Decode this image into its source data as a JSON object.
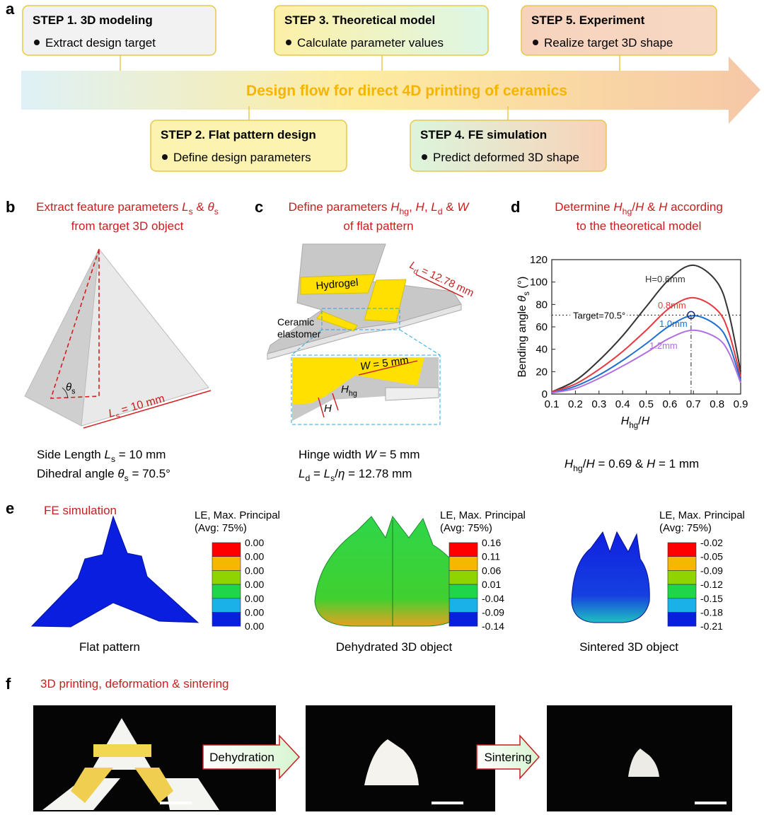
{
  "panel_labels": [
    "a",
    "b",
    "c",
    "d",
    "e",
    "f"
  ],
  "flow": {
    "title": "Design flow for direct 4D printing of ceramics",
    "steps": [
      {
        "heading": "STEP 1. 3D modeling",
        "bullet": "Extract design target"
      },
      {
        "heading": "STEP 2. Flat pattern design",
        "bullet": "Define design parameters"
      },
      {
        "heading": "STEP 3. Theoretical model",
        "bullet": "Calculate parameter values"
      },
      {
        "heading": "STEP 4. FE simulation",
        "bullet": "Predict deformed 3D shape"
      },
      {
        "heading": "STEP 5. Experiment",
        "bullet": "Realize target 3D shape"
      }
    ]
  },
  "panel_b": {
    "title": [
      [
        "Extract feature parameters ",
        "L",
        "s",
        " & ",
        "θ",
        "s"
      ],
      [
        "from target 3D object"
      ]
    ],
    "angle_label": [
      "θ",
      "s"
    ],
    "length_label": [
      "L",
      "s",
      " = 10 mm"
    ],
    "caption": [
      [
        "Side Length ",
        "L",
        "s",
        " = 10 mm"
      ],
      [
        "Dihedral angle ",
        "θ",
        "s",
        " = 70.5°"
      ]
    ]
  },
  "panel_c": {
    "title": [
      [
        "Define parameters ",
        "H",
        "hg",
        ", ",
        "H",
        ", ",
        "L",
        "d",
        " & ",
        "W"
      ],
      [
        "of flat pattern"
      ]
    ],
    "hydrogel_label": "Hydrogel",
    "elastomer_label": [
      "Ceramic",
      "elastomer"
    ],
    "ld_label": [
      "L",
      "d",
      " = 12.78 mm"
    ],
    "w_label": [
      "W",
      " = 5 mm"
    ],
    "hhg_label": [
      "H",
      "hg"
    ],
    "h_label": [
      "H"
    ],
    "caption": [
      [
        "Hinge width ",
        "W",
        " = 5 mm"
      ],
      [
        "L",
        "d",
        " = ",
        "L",
        "s",
        "/",
        "η",
        " = 12.78 mm"
      ]
    ]
  },
  "panel_d": {
    "title": [
      [
        "Determine ",
        "H",
        "hg",
        "/",
        "H",
        " & ",
        "H",
        " according"
      ],
      [
        "to the theoretical model"
      ]
    ],
    "chart_data": {
      "type": "line",
      "xlabel": [
        "H",
        "hg",
        "/",
        "H"
      ],
      "ylabel": [
        "Bending angle ",
        "θ",
        "s",
        " (°)"
      ],
      "x": [
        0.1,
        0.2,
        0.3,
        0.4,
        0.5,
        0.6,
        0.7,
        0.8,
        0.85,
        0.9
      ],
      "series": [
        {
          "name": "H=0.6mm",
          "color": "#333333",
          "values": [
            2,
            12,
            30,
            52,
            78,
            103,
            115,
            100,
            72,
            20
          ]
        },
        {
          "name": "0.8mm",
          "color": "#e8383d",
          "values": [
            2,
            9,
            22,
            38,
            57,
            77,
            86,
            75,
            55,
            15
          ]
        },
        {
          "name": "1.0mm",
          "color": "#1f6fd0",
          "values": [
            1,
            7,
            17,
            30,
            45,
            61,
            70,
            61,
            45,
            12
          ]
        },
        {
          "name": "1.2mm",
          "color": "#b070e0",
          "values": [
            1,
            5,
            14,
            25,
            37,
            50,
            57,
            50,
            37,
            10
          ]
        }
      ],
      "xlim": [
        0.1,
        0.9
      ],
      "ylim": [
        0,
        120
      ],
      "xticks": [
        0.1,
        0.2,
        0.3,
        0.4,
        0.5,
        0.6,
        0.7,
        0.8,
        0.9
      ],
      "yticks": [
        0,
        20,
        40,
        60,
        80,
        100,
        120
      ],
      "target": {
        "label": "Target=70.5°",
        "value": 70.5,
        "x": 0.69
      }
    },
    "result": [
      "H",
      "hg",
      "/",
      "H",
      " = 0.69 & ",
      "H",
      " = 1 mm"
    ]
  },
  "panel_e": {
    "title": "FE simulation",
    "items": [
      {
        "legend_title": "LE, Max. Principal",
        "legend_subtitle": "(Avg: 75%)",
        "legend_labels": [
          "0.00",
          "0.00",
          "0.00",
          "0.00",
          "0.00",
          "0.00",
          "0.00"
        ],
        "caption": "Flat pattern"
      },
      {
        "legend_title": "LE, Max. Principal",
        "legend_subtitle": "(Avg: 75%)",
        "legend_labels": [
          "0.16",
          "0.11",
          "0.06",
          "0.01",
          "-0.04",
          "-0.09",
          "-0.14"
        ],
        "caption": "Dehydrated 3D object"
      },
      {
        "legend_title": "LE, Max. Principal",
        "legend_subtitle": "(Avg: 75%)",
        "legend_labels": [
          "-0.02",
          "-0.05",
          "-0.09",
          "-0.12",
          "-0.15",
          "-0.18",
          "-0.21"
        ],
        "caption": "Sintered 3D object"
      }
    ]
  },
  "panel_f": {
    "title": "3D printing, deformation & sintering",
    "steps": [
      "Dehydration",
      "Sintering"
    ]
  }
}
